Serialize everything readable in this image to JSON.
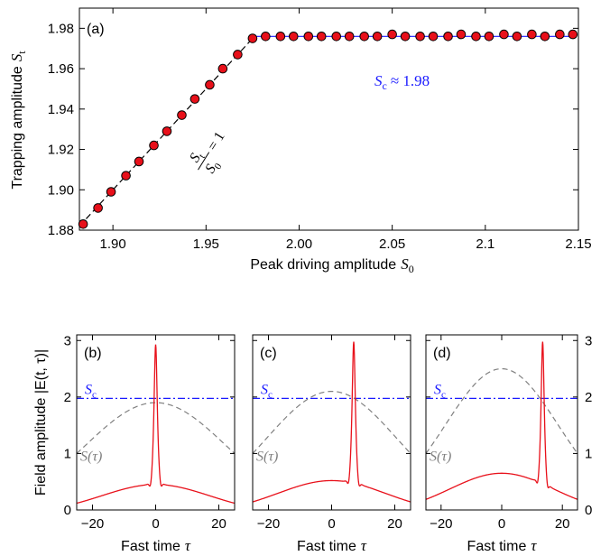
{
  "chart_data": [
    {
      "type": "scatter",
      "panel_label": "(a)",
      "xlabel": "Peak driving amplitude",
      "xlabel_symbol": "S",
      "xlabel_sub": "0",
      "ylabel": "Trapping amplitude",
      "ylabel_symbol": "S",
      "ylabel_sub": "t",
      "xlim": [
        1.882,
        2.15
      ],
      "ylim": [
        1.88,
        1.99
      ],
      "xticks": [
        "1.90",
        "1.95",
        "2.00",
        "2.05",
        "2.1",
        "2.15"
      ],
      "yticks": [
        "1.88",
        "1.90",
        "1.92",
        "1.94",
        "1.96",
        "1.98"
      ],
      "grid": false,
      "series": [
        {
          "x": [
            1.884,
            1.892,
            1.899,
            1.907,
            1.914,
            1.922,
            1.929,
            1.937,
            1.944,
            1.952,
            1.959,
            1.967,
            1.975,
            1.982,
            1.99,
            1.997,
            2.005,
            2.012,
            2.02,
            2.027,
            2.035,
            2.042,
            2.05,
            2.057,
            2.065,
            2.072,
            2.08,
            2.087,
            2.095,
            2.102,
            2.11,
            2.117,
            2.125,
            2.132,
            2.14,
            2.147
          ],
          "y": [
            1.883,
            1.891,
            1.899,
            1.907,
            1.914,
            1.922,
            1.929,
            1.937,
            1.945,
            1.952,
            1.96,
            1.967,
            1.975,
            1.976,
            1.976,
            1.976,
            1.976,
            1.976,
            1.976,
            1.976,
            1.976,
            1.976,
            1.977,
            1.976,
            1.976,
            1.976,
            1.976,
            1.977,
            1.976,
            1.976,
            1.977,
            1.976,
            1.977,
            1.976,
            1.977,
            1.977
          ]
        }
      ],
      "ref_line_x": [
        1.882,
        1.976
      ],
      "plateau_value": 1.976,
      "annotations": {
        "sc_symbol": "S",
        "sc_sub": "c",
        "sc_value": "≈ 1.98",
        "ratio_num_symbol": "S",
        "ratio_num_sub": "t",
        "ratio_den_symbol": "S",
        "ratio_den_sub": "0",
        "ratio_value": "= 1"
      },
      "colors": {
        "marker": "#e8101a",
        "sc_text": "#1a1aff"
      }
    },
    {
      "type": "line",
      "panel_label": "(b)",
      "xlabel": "Fast time",
      "xlabel_symbol": "τ",
      "ylabel": "Field amplitude |E(t, τ)|",
      "xlim": [
        -25,
        25
      ],
      "ylim": [
        0,
        3.1
      ],
      "xticks": [
        "−20",
        "0",
        "20"
      ],
      "yticks": [
        "0",
        "1",
        "2",
        "3"
      ],
      "threshold": 1.975,
      "threshold_label_symbol": "S",
      "threshold_label_sub": "c",
      "drive_label": "S(τ)",
      "drive_peak": 1.9,
      "drive_center": 0,
      "peak_pos": 0,
      "peak_height": 2.93,
      "background_peak": 0.5,
      "colors": {
        "field": "#e8101a",
        "threshold": "#1a1aff",
        "drive": "#808080"
      }
    },
    {
      "type": "line",
      "panel_label": "(c)",
      "xlabel": "Fast time",
      "xlabel_symbol": "τ",
      "xlim": [
        -25,
        25
      ],
      "ylim": [
        0,
        3.1
      ],
      "xticks": [
        "−20",
        "0",
        "20"
      ],
      "threshold": 1.975,
      "threshold_label_symbol": "S",
      "threshold_label_sub": "c",
      "drive_label": "S(τ)",
      "drive_peak": 2.1,
      "drive_center": 0,
      "peak_pos": 7,
      "peak_height": 2.98,
      "background_peak": 0.57,
      "colors": {
        "field": "#e8101a",
        "threshold": "#1a1aff",
        "drive": "#808080"
      }
    },
    {
      "type": "line",
      "panel_label": "(d)",
      "xlabel": "Fast time",
      "xlabel_symbol": "τ",
      "xlim": [
        -25,
        25
      ],
      "ylim": [
        0,
        3.1
      ],
      "xticks": [
        "−20",
        "0",
        "20"
      ],
      "yticks": [
        "0",
        "1",
        "2",
        "3"
      ],
      "threshold": 1.975,
      "threshold_label_symbol": "S",
      "threshold_label_sub": "c",
      "drive_label": "S(τ)",
      "drive_peak": 2.5,
      "drive_center": 0,
      "peak_pos": 13.5,
      "peak_height": 2.98,
      "background_peak": 0.7,
      "colors": {
        "field": "#e8101a",
        "threshold": "#1a1aff",
        "drive": "#808080"
      }
    }
  ]
}
